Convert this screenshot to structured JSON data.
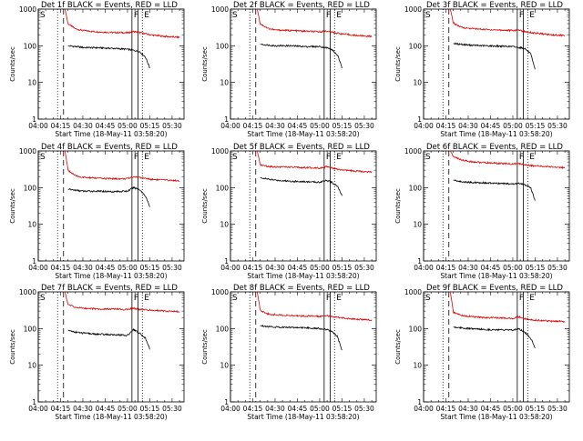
{
  "chart_data": [
    {
      "type": "line",
      "title": "Det 1f BLACK = Events, RED = LLD",
      "xlabel": "Start Time (18-May-11 03:58:20)",
      "ylabel": "Counts/sec",
      "y_scale": "log",
      "ylim": [
        1,
        1000
      ],
      "y_tick_labels": [
        "1",
        "10",
        "100",
        "1000"
      ],
      "x_tick_labels": [
        "04:00",
        "04:15",
        "04:30",
        "04:45",
        "05:00",
        "05:15",
        "05:30"
      ],
      "xlim": [
        "04:00",
        "05:38"
      ],
      "markers": [
        {
          "label": "S",
          "time": "04:00",
          "style": "solid"
        },
        {
          "time": "04:13",
          "style": "dotted"
        },
        {
          "time": "04:17",
          "style": "dashed"
        },
        {
          "label": "F",
          "time": "05:03",
          "style": "solid"
        },
        {
          "time": "05:07",
          "style": "solid"
        },
        {
          "label": "E",
          "time": "05:10",
          "style": "dotted"
        }
      ],
      "series": [
        {
          "color": "#dd0000",
          "x": [
            "04:18",
            "04:20",
            "04:25",
            "04:30",
            "04:40",
            "04:50",
            "05:00",
            "05:04",
            "05:08",
            "05:15",
            "05:25",
            "05:35"
          ],
          "y": [
            1000,
            400,
            290,
            260,
            240,
            230,
            225,
            245,
            230,
            200,
            180,
            170
          ]
        },
        {
          "color": "#000000",
          "x": [
            "04:20",
            "04:25",
            "04:30",
            "04:40",
            "04:50",
            "05:00",
            "05:04",
            "05:08",
            "05:12",
            "05:15"
          ],
          "y": [
            100,
            95,
            90,
            88,
            85,
            80,
            75,
            70,
            50,
            25
          ]
        }
      ]
    },
    {
      "type": "line",
      "title": "Det 2f BLACK = Events, RED = LLD",
      "xlabel": "Start Time (18-May-11 03:58:20)",
      "ylabel": "Counts/sec",
      "y_scale": "log",
      "ylim": [
        1,
        1000
      ],
      "y_tick_labels": [
        "1",
        "10",
        "100",
        "1000"
      ],
      "x_tick_labels": [
        "04:00",
        "04:15",
        "04:30",
        "04:45",
        "05:00",
        "05:15",
        "05:30"
      ],
      "xlim": [
        "04:00",
        "05:38"
      ],
      "markers": [
        {
          "label": "S",
          "time": "04:00",
          "style": "solid"
        },
        {
          "time": "04:13",
          "style": "dotted"
        },
        {
          "time": "04:17",
          "style": "dashed"
        },
        {
          "label": "F",
          "time": "05:03",
          "style": "solid"
        },
        {
          "time": "05:07",
          "style": "solid"
        },
        {
          "label": "E",
          "time": "05:10",
          "style": "dotted"
        }
      ],
      "series": [
        {
          "color": "#dd0000",
          "x": [
            "04:18",
            "04:20",
            "04:25",
            "04:30",
            "04:40",
            "04:50",
            "05:00",
            "05:04",
            "05:08",
            "05:15",
            "05:25",
            "05:35"
          ],
          "y": [
            1000,
            400,
            300,
            270,
            260,
            250,
            240,
            255,
            235,
            210,
            190,
            180
          ]
        },
        {
          "color": "#000000",
          "x": [
            "04:20",
            "04:25",
            "04:30",
            "04:40",
            "04:50",
            "05:00",
            "05:04",
            "05:08",
            "05:12",
            "05:15"
          ],
          "y": [
            110,
            105,
            100,
            100,
            95,
            95,
            90,
            80,
            55,
            25
          ]
        }
      ]
    },
    {
      "type": "line",
      "title": "Det 3f BLACK = Events, RED = LLD",
      "xlabel": "Start Time (18-May-11 03:58:20)",
      "ylabel": "Counts/sec",
      "y_scale": "log",
      "ylim": [
        1,
        1000
      ],
      "y_tick_labels": [
        "1",
        "10",
        "100",
        "1000"
      ],
      "x_tick_labels": [
        "04:00",
        "04:15",
        "04:30",
        "04:45",
        "05:00",
        "05:15",
        "05:30"
      ],
      "xlim": [
        "04:00",
        "05:38"
      ],
      "markers": [
        {
          "label": "S",
          "time": "04:00",
          "style": "solid"
        },
        {
          "time": "04:13",
          "style": "dotted"
        },
        {
          "time": "04:17",
          "style": "dashed"
        },
        {
          "label": "F",
          "time": "05:03",
          "style": "solid"
        },
        {
          "time": "05:07",
          "style": "solid"
        },
        {
          "label": "E",
          "time": "05:10",
          "style": "dotted"
        }
      ],
      "series": [
        {
          "color": "#dd0000",
          "x": [
            "04:18",
            "04:20",
            "04:25",
            "04:30",
            "04:40",
            "04:50",
            "05:00",
            "05:04",
            "05:08",
            "05:15",
            "05:25",
            "05:35"
          ],
          "y": [
            1000,
            420,
            320,
            300,
            280,
            270,
            260,
            270,
            245,
            220,
            200,
            190
          ]
        },
        {
          "color": "#000000",
          "x": [
            "04:20",
            "04:25",
            "04:30",
            "04:40",
            "04:50",
            "05:00",
            "05:04",
            "05:08",
            "05:12",
            "05:15"
          ],
          "y": [
            115,
            110,
            105,
            100,
            98,
            95,
            90,
            85,
            60,
            22
          ]
        }
      ]
    },
    {
      "type": "line",
      "title": "Det 4f BLACK = Events, RED = LLD",
      "xlabel": "Start Time (18-May-11 03:58:20)",
      "ylabel": "Counts/sec",
      "y_scale": "log",
      "ylim": [
        1,
        1000
      ],
      "y_tick_labels": [
        "1",
        "10",
        "100",
        "1000"
      ],
      "x_tick_labels": [
        "04:00",
        "04:15",
        "04:30",
        "04:45",
        "05:00",
        "05:15",
        "05:30"
      ],
      "xlim": [
        "04:00",
        "05:38"
      ],
      "markers": [
        {
          "label": "S",
          "time": "04:00",
          "style": "solid"
        },
        {
          "time": "04:13",
          "style": "dotted"
        },
        {
          "time": "04:17",
          "style": "dashed"
        },
        {
          "label": "F",
          "time": "05:03",
          "style": "solid"
        },
        {
          "time": "05:07",
          "style": "solid"
        },
        {
          "label": "E",
          "time": "05:10",
          "style": "dotted"
        }
      ],
      "series": [
        {
          "color": "#dd0000",
          "x": [
            "04:18",
            "04:20",
            "04:25",
            "04:30",
            "04:40",
            "04:50",
            "05:00",
            "05:04",
            "05:08",
            "05:15",
            "05:25",
            "05:35"
          ],
          "y": [
            1000,
            300,
            210,
            190,
            180,
            175,
            175,
            200,
            190,
            170,
            160,
            155
          ]
        },
        {
          "color": "#000000",
          "x": [
            "04:20",
            "04:25",
            "04:30",
            "04:40",
            "04:50",
            "05:00",
            "05:04",
            "05:08",
            "05:12",
            "05:15"
          ],
          "y": [
            90,
            85,
            80,
            80,
            78,
            80,
            100,
            90,
            60,
            30
          ]
        }
      ]
    },
    {
      "type": "line",
      "title": "Det 5f BLACK = Events, RED = LLD",
      "xlabel": "Start Time (18-May-11 03:58:20)",
      "ylabel": "Counts/sec",
      "y_scale": "log",
      "ylim": [
        1,
        1000
      ],
      "y_tick_labels": [
        "1",
        "10",
        "100",
        "1000"
      ],
      "x_tick_labels": [
        "04:00",
        "04:15",
        "04:30",
        "04:45",
        "05:00",
        "05:15",
        "05:30"
      ],
      "xlim": [
        "04:00",
        "05:38"
      ],
      "markers": [
        {
          "label": "S",
          "time": "04:00",
          "style": "solid"
        },
        {
          "time": "04:13",
          "style": "dotted"
        },
        {
          "time": "04:17",
          "style": "dashed"
        },
        {
          "label": "F",
          "time": "05:03",
          "style": "solid"
        },
        {
          "time": "05:07",
          "style": "solid"
        },
        {
          "label": "E",
          "time": "05:10",
          "style": "dotted"
        }
      ],
      "series": [
        {
          "color": "#dd0000",
          "x": [
            "04:18",
            "04:20",
            "04:25",
            "04:30",
            "04:40",
            "04:50",
            "05:00",
            "05:04",
            "05:08",
            "05:15",
            "05:25",
            "05:35"
          ],
          "y": [
            1000,
            420,
            380,
            370,
            360,
            350,
            345,
            370,
            340,
            300,
            280,
            270
          ]
        },
        {
          "color": "#000000",
          "x": [
            "04:20",
            "04:25",
            "04:30",
            "04:40",
            "04:50",
            "05:00",
            "05:04",
            "05:08",
            "05:12",
            "05:15"
          ],
          "y": [
            190,
            170,
            160,
            150,
            145,
            140,
            160,
            140,
            110,
            60
          ]
        }
      ]
    },
    {
      "type": "line",
      "title": "Det 6f BLACK = Events, RED = LLD",
      "xlabel": "Start Time (18-May-11 03:58:20)",
      "ylabel": "Counts/sec",
      "y_scale": "log",
      "ylim": [
        1,
        1000
      ],
      "y_tick_labels": [
        "1",
        "10",
        "100",
        "1000"
      ],
      "x_tick_labels": [
        "04:00",
        "04:15",
        "04:30",
        "04:45",
        "05:00",
        "05:15",
        "05:30"
      ],
      "xlim": [
        "04:00",
        "05:38"
      ],
      "markers": [
        {
          "label": "S",
          "time": "04:00",
          "style": "solid"
        },
        {
          "time": "04:13",
          "style": "dotted"
        },
        {
          "time": "04:17",
          "style": "dashed"
        },
        {
          "label": "F",
          "time": "05:03",
          "style": "solid"
        },
        {
          "time": "05:07",
          "style": "solid"
        },
        {
          "label": "E",
          "time": "05:10",
          "style": "dotted"
        }
      ],
      "series": [
        {
          "color": "#dd0000",
          "x": [
            "04:18",
            "04:20",
            "04:25",
            "04:30",
            "04:40",
            "04:50",
            "05:00",
            "05:04",
            "05:08",
            "05:15",
            "05:25",
            "05:35"
          ],
          "y": [
            1000,
            700,
            580,
            520,
            480,
            460,
            440,
            450,
            420,
            390,
            370,
            350
          ]
        },
        {
          "color": "#000000",
          "x": [
            "04:20",
            "04:25",
            "04:30",
            "04:40",
            "04:50",
            "05:00",
            "05:04",
            "05:08",
            "05:12",
            "05:15"
          ],
          "y": [
            160,
            145,
            140,
            135,
            130,
            125,
            130,
            120,
            100,
            45
          ]
        }
      ]
    },
    {
      "type": "line",
      "title": "Det 7f BLACK = Events, RED = LLD",
      "xlabel": "Start Time (18-May-11 03:58:20)",
      "ylabel": "Counts/sec",
      "y_scale": "log",
      "ylim": [
        1,
        1000
      ],
      "y_tick_labels": [
        "1",
        "10",
        "100",
        "1000"
      ],
      "x_tick_labels": [
        "04:00",
        "04:15",
        "04:30",
        "04:45",
        "05:00",
        "05:15",
        "05:30"
      ],
      "xlim": [
        "04:00",
        "05:38"
      ],
      "markers": [
        {
          "label": "S",
          "time": "04:00",
          "style": "solid"
        },
        {
          "time": "04:13",
          "style": "dotted"
        },
        {
          "time": "04:17",
          "style": "dashed"
        },
        {
          "label": "F",
          "time": "05:03",
          "style": "solid"
        },
        {
          "time": "05:07",
          "style": "solid"
        },
        {
          "label": "E",
          "time": "05:10",
          "style": "dotted"
        }
      ],
      "series": [
        {
          "color": "#dd0000",
          "x": [
            "04:18",
            "04:20",
            "04:25",
            "04:30",
            "04:40",
            "04:50",
            "05:00",
            "05:04",
            "05:08",
            "05:15",
            "05:25",
            "05:35"
          ],
          "y": [
            1000,
            450,
            380,
            360,
            340,
            340,
            330,
            360,
            330,
            320,
            300,
            290
          ]
        },
        {
          "color": "#000000",
          "x": [
            "04:20",
            "04:25",
            "04:30",
            "04:40",
            "04:50",
            "05:00",
            "05:04",
            "05:08",
            "05:12",
            "05:15"
          ],
          "y": [
            90,
            80,
            75,
            70,
            68,
            65,
            95,
            75,
            55,
            28
          ]
        }
      ]
    },
    {
      "type": "line",
      "title": "Det 8f BLACK = Events, RED = LLD",
      "xlabel": "Start Time (18-May-11 03:58:20)",
      "ylabel": "Counts/sec",
      "y_scale": "log",
      "ylim": [
        1,
        1000
      ],
      "y_tick_labels": [
        "1",
        "10",
        "100",
        "1000"
      ],
      "x_tick_labels": [
        "04:00",
        "04:15",
        "04:30",
        "04:45",
        "05:00",
        "05:15",
        "05:30"
      ],
      "xlim": [
        "04:00",
        "05:38"
      ],
      "markers": [
        {
          "label": "S",
          "time": "04:00",
          "style": "solid"
        },
        {
          "time": "04:13",
          "style": "dotted"
        },
        {
          "time": "04:17",
          "style": "dashed"
        },
        {
          "label": "F",
          "time": "05:03",
          "style": "solid"
        },
        {
          "time": "05:07",
          "style": "solid"
        },
        {
          "label": "E",
          "time": "05:10",
          "style": "dotted"
        }
      ],
      "series": [
        {
          "color": "#dd0000",
          "x": [
            "04:18",
            "04:20",
            "04:25",
            "04:30",
            "04:40",
            "04:50",
            "05:00",
            "05:04",
            "05:08",
            "05:15",
            "05:25",
            "05:35"
          ],
          "y": [
            1000,
            320,
            250,
            240,
            225,
            220,
            215,
            230,
            210,
            195,
            180,
            170
          ]
        },
        {
          "color": "#000000",
          "x": [
            "04:20",
            "04:25",
            "04:30",
            "04:40",
            "04:50",
            "05:00",
            "05:04",
            "05:08",
            "05:12",
            "05:15"
          ],
          "y": [
            120,
            115,
            110,
            108,
            105,
            100,
            95,
            85,
            60,
            25
          ]
        }
      ]
    },
    {
      "type": "line",
      "title": "Det 9f BLACK = Events, RED = LLD",
      "xlabel": "Start Time (18-May-11 03:58:20)",
      "ylabel": "Counts/sec",
      "y_scale": "log",
      "ylim": [
        1,
        1000
      ],
      "y_tick_labels": [
        "1",
        "10",
        "100",
        "1000"
      ],
      "x_tick_labels": [
        "04:00",
        "04:15",
        "04:30",
        "04:45",
        "05:00",
        "05:15",
        "05:30"
      ],
      "xlim": [
        "04:00",
        "05:38"
      ],
      "markers": [
        {
          "label": "S",
          "time": "04:00",
          "style": "solid"
        },
        {
          "time": "04:13",
          "style": "dotted"
        },
        {
          "time": "04:17",
          "style": "dashed"
        },
        {
          "label": "F",
          "time": "05:03",
          "style": "solid"
        },
        {
          "time": "05:07",
          "style": "solid"
        },
        {
          "label": "E",
          "time": "05:10",
          "style": "dotted"
        }
      ],
      "series": [
        {
          "color": "#dd0000",
          "x": [
            "04:18",
            "04:20",
            "04:25",
            "04:30",
            "04:40",
            "04:50",
            "05:00",
            "05:04",
            "05:08",
            "05:15",
            "05:25",
            "05:35"
          ],
          "y": [
            1000,
            280,
            230,
            215,
            200,
            195,
            190,
            210,
            185,
            170,
            160,
            155
          ]
        },
        {
          "color": "#000000",
          "x": [
            "04:20",
            "04:25",
            "04:30",
            "04:40",
            "04:50",
            "05:00",
            "05:04",
            "05:08",
            "05:12",
            "05:15"
          ],
          "y": [
            110,
            105,
            100,
            95,
            92,
            90,
            100,
            80,
            55,
            30
          ]
        }
      ]
    }
  ]
}
